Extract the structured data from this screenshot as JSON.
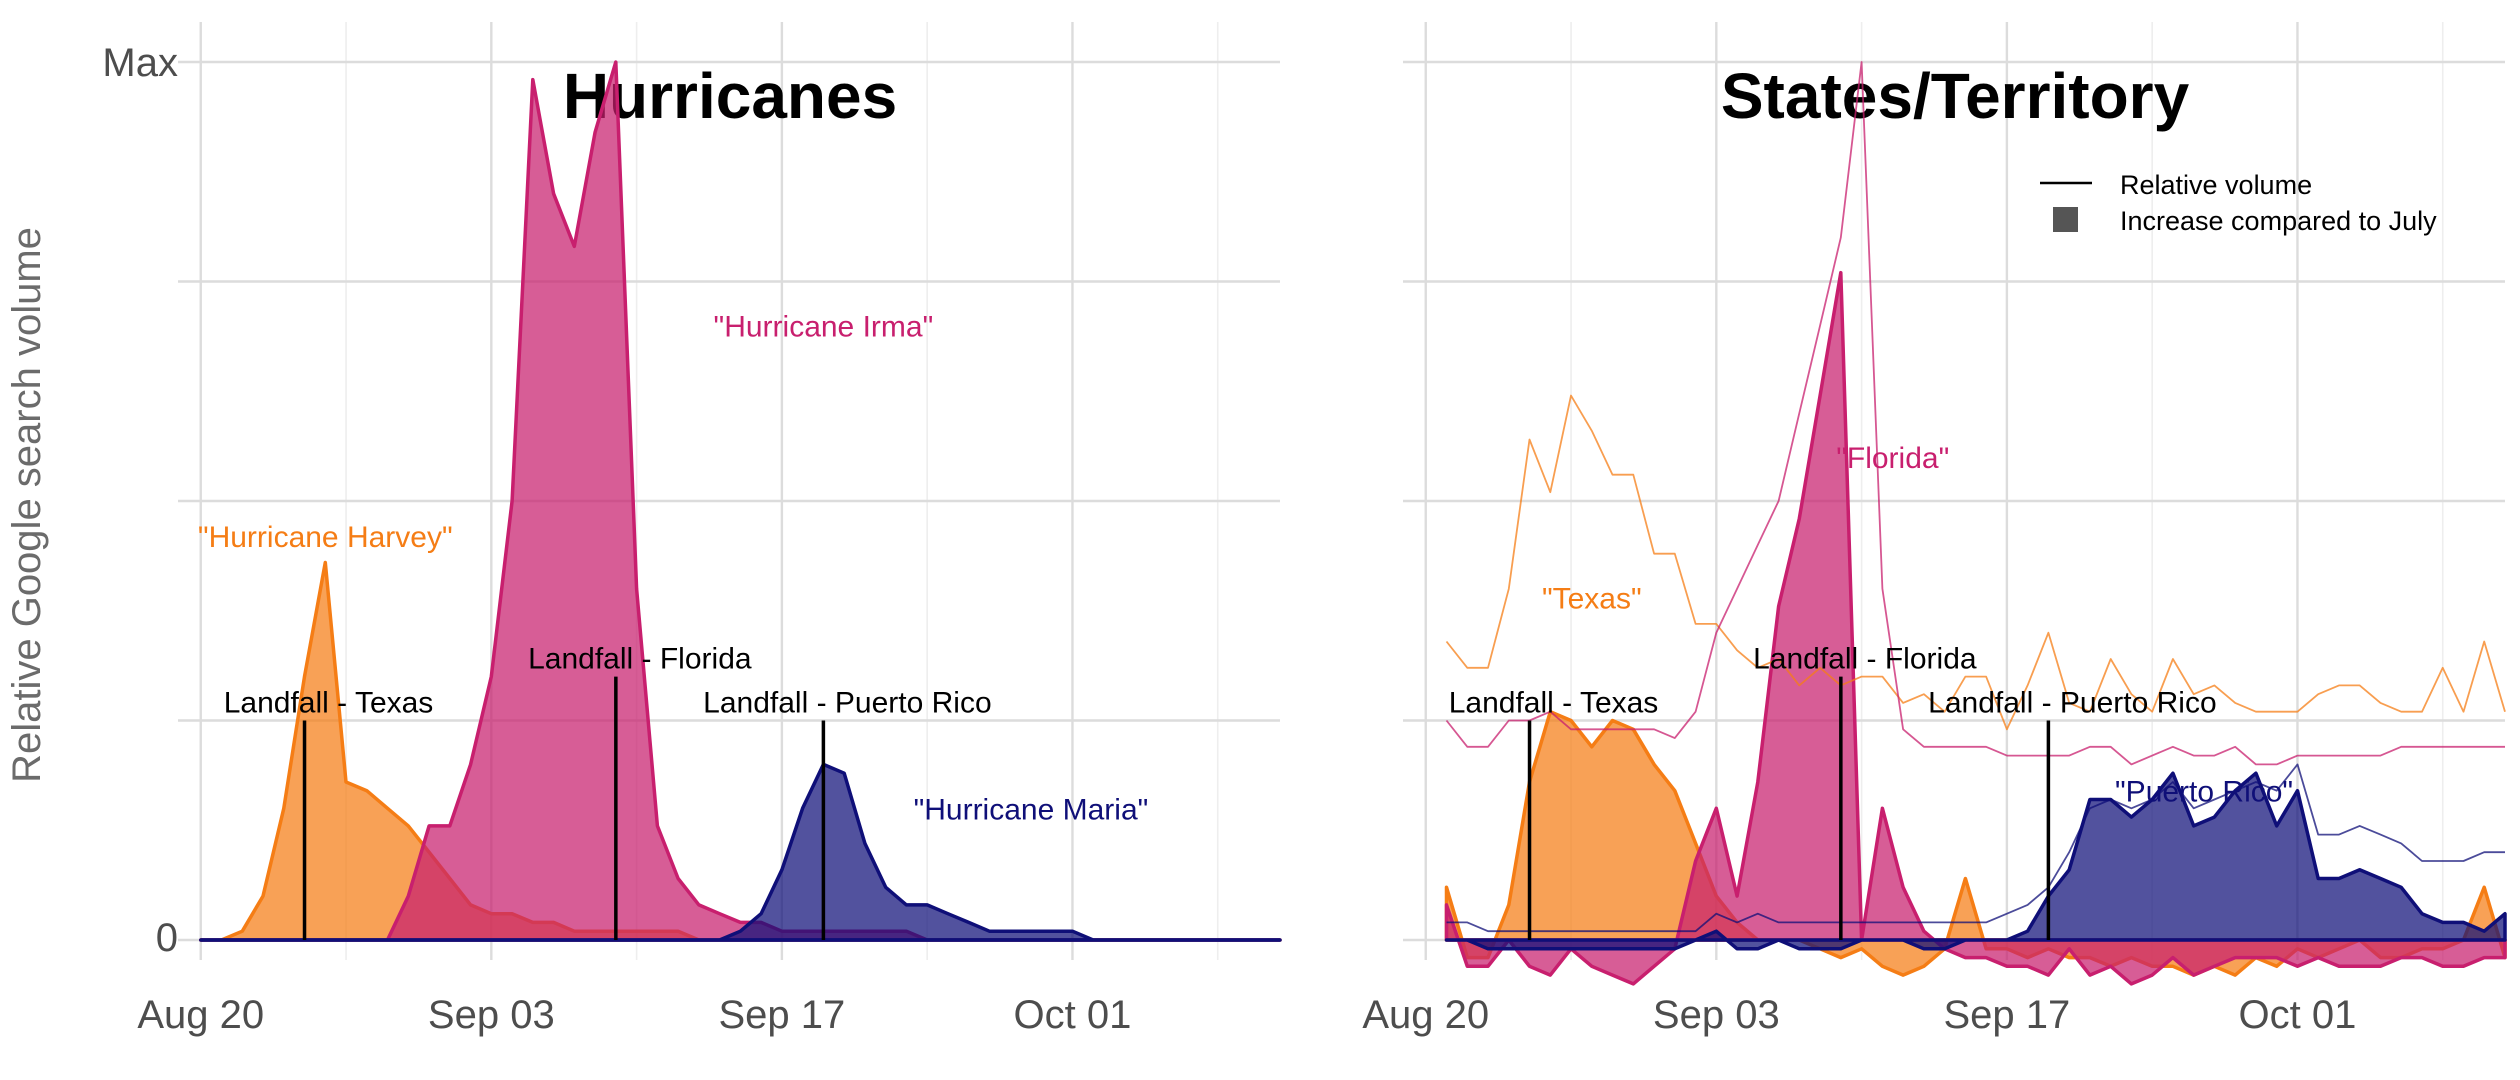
{
  "ylabel": "Relative Google search volume",
  "y_ticks": [
    "0",
    "Max"
  ],
  "colors": {
    "harvey": "#f57d15",
    "irma": "#c81f6e",
    "maria": "#0f0f78",
    "vline": "#000000"
  },
  "legend": {
    "relative": "Relative volume",
    "increase": "Increase compared to July"
  },
  "chart_data": [
    {
      "type": "area",
      "title": "Hurricanes",
      "xlabel": "",
      "ylabel": "Relative Google search volume",
      "x_ticks": [
        "Aug 20",
        "Sep 03",
        "Sep 17",
        "Oct 01"
      ],
      "x_range": [
        -1,
        52
      ],
      "ylim": [
        0,
        100
      ],
      "annotations": [
        {
          "label": "Landfall - Texas",
          "x": 5,
          "y_top": 25
        },
        {
          "label": "Landfall - Florida",
          "x": 20,
          "y_top": 30
        },
        {
          "label": "Landfall - Puerto Rico",
          "x": 30,
          "y_top": 25
        }
      ],
      "series": [
        {
          "name": "\"Hurricane Harvey\"",
          "color": "harvey",
          "label_at": [
            6,
            46
          ],
          "x": [
            0,
            1,
            2,
            3,
            4,
            5,
            6,
            7,
            8,
            9,
            10,
            11,
            12,
            13,
            14,
            15,
            16,
            17,
            18,
            19,
            20,
            21,
            22,
            23,
            24,
            25,
            26,
            27,
            28,
            29,
            30,
            31,
            32,
            33,
            34,
            35,
            36,
            37,
            38,
            39,
            40,
            41,
            42,
            43,
            44,
            45,
            46,
            47,
            48,
            49,
            50,
            51,
            52
          ],
          "values": [
            0,
            0,
            1,
            5,
            15,
            30,
            43,
            18,
            17,
            15,
            13,
            10,
            7,
            4,
            3,
            3,
            2,
            2,
            1,
            1,
            1,
            1,
            1,
            1,
            0,
            0,
            0,
            0,
            0,
            0,
            0,
            0,
            0,
            0,
            0,
            0,
            0,
            0,
            0,
            0,
            0,
            0,
            0,
            0,
            0,
            0,
            0,
            0,
            0,
            0,
            0,
            0,
            0
          ]
        },
        {
          "name": "\"Hurricane Irma\"",
          "color": "irma",
          "label_at": [
            30,
            70
          ],
          "x": [
            0,
            1,
            2,
            3,
            4,
            5,
            6,
            7,
            8,
            9,
            10,
            11,
            12,
            13,
            14,
            15,
            16,
            17,
            18,
            19,
            20,
            21,
            22,
            23,
            24,
            25,
            26,
            27,
            28,
            29,
            30,
            31,
            32,
            33,
            34,
            35,
            36,
            37,
            38,
            39,
            40,
            41,
            42,
            43,
            44,
            45,
            46,
            47,
            48,
            49,
            50,
            51,
            52
          ],
          "values": [
            0,
            0,
            0,
            0,
            0,
            0,
            0,
            0,
            0,
            0,
            5,
            13,
            13,
            20,
            30,
            50,
            98,
            85,
            79,
            92,
            100,
            40,
            13,
            7,
            4,
            3,
            2,
            2,
            1,
            1,
            1,
            1,
            1,
            1,
            1,
            0,
            0,
            0,
            0,
            0,
            0,
            0,
            0,
            0,
            0,
            0,
            0,
            0,
            0,
            0,
            0,
            0,
            0
          ]
        },
        {
          "name": "\"Hurricane Maria\"",
          "color": "maria",
          "label_at": [
            40,
            15
          ],
          "x": [
            0,
            1,
            2,
            3,
            4,
            5,
            6,
            7,
            8,
            9,
            10,
            11,
            12,
            13,
            14,
            15,
            16,
            17,
            18,
            19,
            20,
            21,
            22,
            23,
            24,
            25,
            26,
            27,
            28,
            29,
            30,
            31,
            32,
            33,
            34,
            35,
            36,
            37,
            38,
            39,
            40,
            41,
            42,
            43,
            44,
            45,
            46,
            47,
            48,
            49,
            50,
            51,
            52
          ],
          "values": [
            0,
            0,
            0,
            0,
            0,
            0,
            0,
            0,
            0,
            0,
            0,
            0,
            0,
            0,
            0,
            0,
            0,
            0,
            0,
            0,
            0,
            0,
            0,
            0,
            0,
            0,
            1,
            3,
            8,
            15,
            20,
            19,
            11,
            6,
            4,
            4,
            3,
            2,
            1,
            1,
            1,
            1,
            1,
            0,
            0,
            0,
            0,
            0,
            0,
            0,
            0,
            0,
            0
          ]
        }
      ]
    },
    {
      "type": "line",
      "title": "States/Territory",
      "xlabel": "",
      "ylabel": "",
      "x_ticks": [
        "Aug 20",
        "Sep 03",
        "Sep 17",
        "Oct 01"
      ],
      "x_range": [
        -1,
        52
      ],
      "ylim": [
        -5,
        100
      ],
      "legend_position": "top-right",
      "annotations": [
        {
          "label": "Landfall - Texas",
          "x": 5,
          "y_top": 25
        },
        {
          "label": "Landfall - Florida",
          "x": 20,
          "y_top": 30
        },
        {
          "label": "Landfall - Puerto Rico",
          "x": 30,
          "y_top": 25
        }
      ],
      "series": [
        {
          "name": "\"Texas\"",
          "color": "harvey",
          "label_at": [
            8,
            39
          ],
          "x": [
            1,
            2,
            3,
            4,
            5,
            6,
            7,
            8,
            9,
            10,
            11,
            12,
            13,
            14,
            15,
            16,
            17,
            18,
            19,
            20,
            21,
            22,
            23,
            24,
            25,
            26,
            27,
            28,
            29,
            30,
            31,
            32,
            33,
            34,
            35,
            36,
            37,
            38,
            39,
            40,
            41,
            42,
            43,
            44,
            45,
            46,
            47,
            48,
            49,
            50,
            51,
            52
          ],
          "relative": [
            34,
            31,
            31,
            40,
            57,
            51,
            62,
            58,
            53,
            53,
            44,
            44,
            36,
            36,
            33,
            31,
            32,
            29,
            31,
            29,
            30,
            30,
            27,
            28,
            26,
            30,
            30,
            24,
            29,
            35,
            27,
            26,
            32,
            28,
            26,
            32,
            28,
            29,
            27,
            26,
            26,
            26,
            28,
            29,
            29,
            27,
            26,
            26,
            31,
            26,
            34,
            26
          ],
          "increase": [
            6,
            -2,
            -2,
            4,
            18,
            26,
            25,
            22,
            25,
            24,
            20,
            17,
            11,
            5,
            2,
            0,
            0,
            0,
            -1,
            -2,
            -1,
            -3,
            -4,
            -3,
            -1,
            7,
            -1,
            -1,
            -2,
            -1,
            -2,
            -2,
            -3,
            -2,
            -3,
            -3,
            -4,
            -3,
            -4,
            -2,
            -3,
            -1,
            -2,
            -1,
            0,
            -2,
            -2,
            -1,
            -1,
            0,
            6,
            -2
          ]
        },
        {
          "name": "\"Florida\"",
          "color": "irma",
          "label_at": [
            22.5,
            55
          ],
          "x": [
            1,
            2,
            3,
            4,
            5,
            6,
            7,
            8,
            9,
            10,
            11,
            12,
            13,
            14,
            15,
            16,
            17,
            18,
            19,
            20,
            21,
            22,
            23,
            24,
            25,
            26,
            27,
            28,
            29,
            30,
            31,
            32,
            33,
            34,
            35,
            36,
            37,
            38,
            39,
            40,
            41,
            42,
            43,
            44,
            45,
            46,
            47,
            48,
            49,
            50,
            51,
            52
          ],
          "relative": [
            25,
            22,
            22,
            25,
            25,
            26,
            24,
            24,
            24,
            24,
            24,
            23,
            26,
            35,
            40,
            45,
            50,
            60,
            70,
            80,
            100,
            40,
            24,
            22,
            22,
            22,
            22,
            21,
            21,
            21,
            21,
            22,
            22,
            20,
            21,
            22,
            21,
            21,
            22,
            20,
            20,
            21,
            21,
            21,
            21,
            21,
            22,
            22,
            22,
            22,
            22,
            22
          ],
          "increase": [
            4,
            -3,
            -3,
            0,
            -3,
            -4,
            -1,
            -3,
            -4,
            -5,
            -3,
            -1,
            9,
            15,
            5,
            18,
            38,
            48,
            62,
            76,
            0,
            15,
            6,
            1,
            -1,
            -2,
            -2,
            -3,
            -3,
            -4,
            -1,
            -4,
            -3,
            -5,
            -4,
            -2,
            -4,
            -3,
            -2,
            -2,
            -2,
            -3,
            -2,
            -3,
            -3,
            -3,
            -2,
            -2,
            -3,
            -3,
            -2,
            -2
          ]
        },
        {
          "name": "\"Puerto Rico\"",
          "color": "maria",
          "label_at": [
            37.5,
            17
          ],
          "x": [
            1,
            2,
            3,
            4,
            5,
            6,
            7,
            8,
            9,
            10,
            11,
            12,
            13,
            14,
            15,
            16,
            17,
            18,
            19,
            20,
            21,
            22,
            23,
            24,
            25,
            26,
            27,
            28,
            29,
            30,
            31,
            32,
            33,
            34,
            35,
            36,
            37,
            38,
            39,
            40,
            41,
            42,
            43,
            44,
            45,
            46,
            47,
            48,
            49,
            50,
            51,
            52
          ],
          "relative": [
            2,
            2,
            1,
            1,
            1,
            1,
            1,
            1,
            1,
            1,
            1,
            1,
            1,
            3,
            2,
            3,
            2,
            2,
            2,
            2,
            2,
            2,
            2,
            2,
            2,
            2,
            2,
            3,
            4,
            6,
            10,
            15,
            16,
            15,
            16,
            18,
            15,
            16,
            17,
            18,
            17,
            20,
            12,
            12,
            13,
            12,
            11,
            9,
            9,
            9,
            10,
            10
          ],
          "increase": [
            0,
            0,
            -1,
            -1,
            -1,
            -1,
            -1,
            -1,
            -1,
            -1,
            -1,
            -1,
            0,
            1,
            -1,
            -1,
            0,
            -1,
            -1,
            -1,
            0,
            0,
            0,
            -1,
            -1,
            0,
            0,
            0,
            1,
            5,
            8,
            16,
            16,
            14,
            16,
            19,
            13,
            14,
            17,
            19,
            13,
            17,
            7,
            7,
            8,
            7,
            6,
            3,
            2,
            2,
            1,
            3
          ]
        }
      ]
    }
  ]
}
